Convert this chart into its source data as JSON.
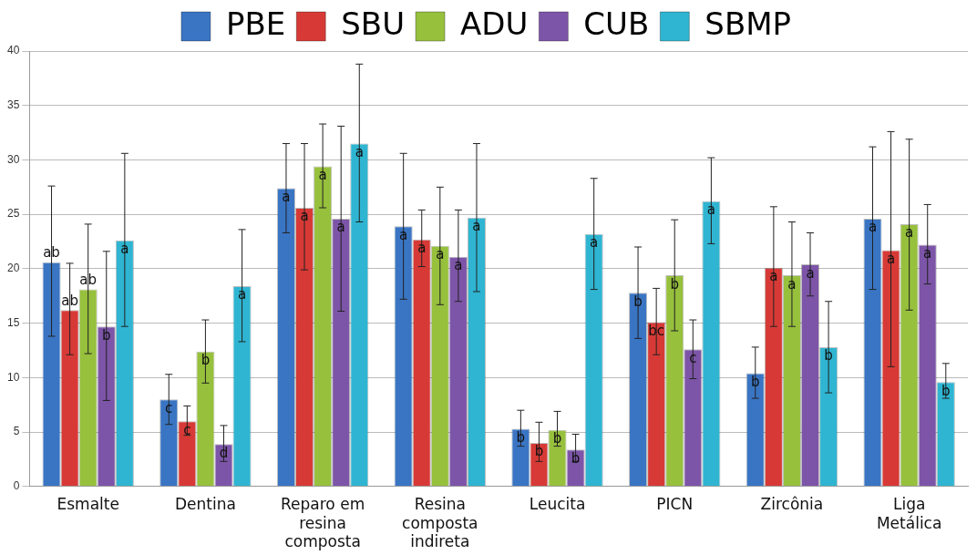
{
  "chart_data": {
    "type": "bar",
    "categories": [
      "Esmalte",
      "Dentina",
      "Reparo em resina composta",
      "Resina composta indireta",
      "Leucita",
      "PICN",
      "Zircônia",
      "Liga Metálica"
    ],
    "ylim": [
      0,
      40
    ],
    "yticks": [
      0,
      5,
      10,
      15,
      20,
      25,
      30,
      35,
      40
    ],
    "grid": "y",
    "legend": "top",
    "series": [
      {
        "name": "PBE",
        "color": "#3a75c4",
        "values": [
          20.6,
          8.0,
          27.4,
          23.9,
          5.3,
          17.8,
          10.4,
          24.6
        ],
        "errors": [
          [
            13.8,
            27.6
          ],
          [
            5.7,
            10.3
          ],
          [
            23.3,
            31.5
          ],
          [
            17.2,
            30.6
          ],
          [
            3.7,
            7.0
          ],
          [
            13.6,
            22.0
          ],
          [
            8.1,
            12.8
          ],
          [
            18.1,
            31.2
          ]
        ],
        "value_labels": [
          "ab",
          "c",
          "a",
          "a",
          "b",
          "b",
          "b",
          "a"
        ]
      },
      {
        "name": "SBU",
        "color": "#d73a36",
        "values": [
          16.2,
          6.0,
          25.6,
          22.7,
          4.0,
          15.1,
          20.1,
          21.7
        ],
        "errors": [
          [
            12.1,
            20.5
          ],
          [
            4.7,
            7.4
          ],
          [
            19.9,
            31.5
          ],
          [
            20.2,
            25.4
          ],
          [
            2.3,
            5.9
          ],
          [
            12.1,
            18.2
          ],
          [
            14.7,
            25.7
          ],
          [
            11.0,
            32.6
          ]
        ],
        "value_labels": [
          "ab",
          "c",
          "a",
          "a",
          "b",
          "bc",
          "a",
          "a"
        ]
      },
      {
        "name": "ADU",
        "color": "#97c03d",
        "values": [
          18.1,
          12.4,
          29.4,
          22.1,
          5.2,
          19.4,
          19.4,
          24.1
        ],
        "errors": [
          [
            12.2,
            24.1
          ],
          [
            9.5,
            15.3
          ],
          [
            25.6,
            33.3
          ],
          [
            16.7,
            27.5
          ],
          [
            3.7,
            6.9
          ],
          [
            14.3,
            24.5
          ],
          [
            14.7,
            24.3
          ],
          [
            16.2,
            31.9
          ]
        ],
        "value_labels": [
          "ab",
          "b",
          "a",
          "a",
          "b",
          "b",
          "a",
          "a"
        ]
      },
      {
        "name": "CUB",
        "color": "#7d55a8",
        "values": [
          14.7,
          3.9,
          24.6,
          21.1,
          3.4,
          12.6,
          20.4,
          22.2
        ],
        "errors": [
          [
            7.9,
            21.6
          ],
          [
            2.3,
            5.6
          ],
          [
            16.1,
            33.1
          ],
          [
            17.0,
            25.4
          ],
          [
            2.3,
            4.8
          ],
          [
            9.9,
            15.3
          ],
          [
            17.5,
            23.3
          ],
          [
            18.6,
            25.9
          ]
        ],
        "value_labels": [
          "b",
          "d",
          "a",
          "a",
          "b",
          "c",
          "a",
          "a"
        ]
      },
      {
        "name": "SBMP",
        "color": "#2fb5d2",
        "values": [
          22.6,
          18.4,
          31.5,
          24.7,
          23.2,
          26.2,
          12.8,
          9.6
        ],
        "errors": [
          [
            14.7,
            30.6
          ],
          [
            13.3,
            23.6
          ],
          [
            24.3,
            38.8
          ],
          [
            17.9,
            31.5
          ],
          [
            18.1,
            28.3
          ],
          [
            22.3,
            30.2
          ],
          [
            8.6,
            17.0
          ],
          [
            8.1,
            11.3
          ]
        ],
        "value_labels": [
          "a",
          "a",
          "a",
          "a",
          "a",
          "a",
          "b",
          "b"
        ]
      }
    ]
  }
}
